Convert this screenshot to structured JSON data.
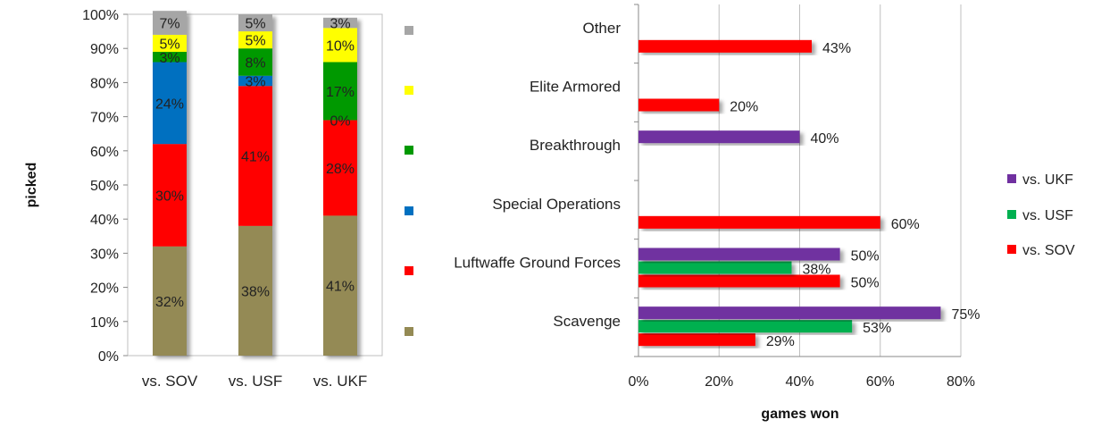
{
  "chart_data": [
    {
      "type": "bar",
      "stacked": true,
      "orientation": "vertical",
      "percent": true,
      "categories": [
        "vs. SOV",
        "vs. USF",
        "vs. UKF"
      ],
      "series": [
        {
          "color": "#948a54",
          "values": [
            32,
            38,
            41
          ],
          "labels": [
            "32%",
            "38%",
            "41%"
          ]
        },
        {
          "color": "#ff0000",
          "values": [
            30,
            41,
            28
          ],
          "labels": [
            "30%",
            "41%",
            "28%"
          ]
        },
        {
          "color": "#0070c0",
          "values": [
            24,
            3,
            0
          ],
          "labels": [
            "24%",
            "3%",
            "0%"
          ]
        },
        {
          "color": "#009900",
          "values": [
            3,
            8,
            17
          ],
          "labels": [
            "3%",
            "8%",
            "17%"
          ]
        },
        {
          "color": "#ffff00",
          "values": [
            5,
            5,
            10
          ],
          "labels": [
            "5%",
            "5%",
            "10%"
          ]
        },
        {
          "color": "#a6a6a6",
          "values": [
            7,
            5,
            3
          ],
          "labels": [
            "7%",
            "5%",
            "3%"
          ]
        }
      ],
      "ylabel": "picked",
      "ylim": [
        0,
        100
      ],
      "yticks": [
        "0%",
        "10%",
        "20%",
        "30%",
        "40%",
        "50%",
        "60%",
        "70%",
        "80%",
        "90%",
        "100%"
      ],
      "legend_position": "right",
      "grid": false
    },
    {
      "type": "bar",
      "orientation": "horizontal",
      "categories": [
        "Scavenge",
        "Luftwaffe Ground Forces",
        "Special Operations",
        "Breakthrough",
        "Elite Armored",
        "Other"
      ],
      "series": [
        {
          "name": "vs. SOV",
          "color": "#ff0000",
          "values": [
            29,
            50,
            60,
            null,
            20,
            43
          ],
          "labels": [
            "29%",
            "50%",
            "60%",
            "",
            "20%",
            "43%"
          ]
        },
        {
          "name": "vs. USF",
          "color": "#00b050",
          "values": [
            53,
            38,
            null,
            null,
            null,
            null
          ],
          "labels": [
            "53%",
            "38%",
            "",
            "",
            "",
            ""
          ]
        },
        {
          "name": "vs. UKF",
          "color": "#7030a0",
          "values": [
            75,
            50,
            null,
            40,
            null,
            null
          ],
          "labels": [
            "75%",
            "50%",
            "",
            "40%",
            "",
            ""
          ]
        }
      ],
      "xlabel": "games won",
      "xlim": [
        0,
        80
      ],
      "xticks": [
        "0%",
        "20%",
        "40%",
        "60%",
        "80%"
      ],
      "legend_position": "right",
      "grid": true
    }
  ]
}
